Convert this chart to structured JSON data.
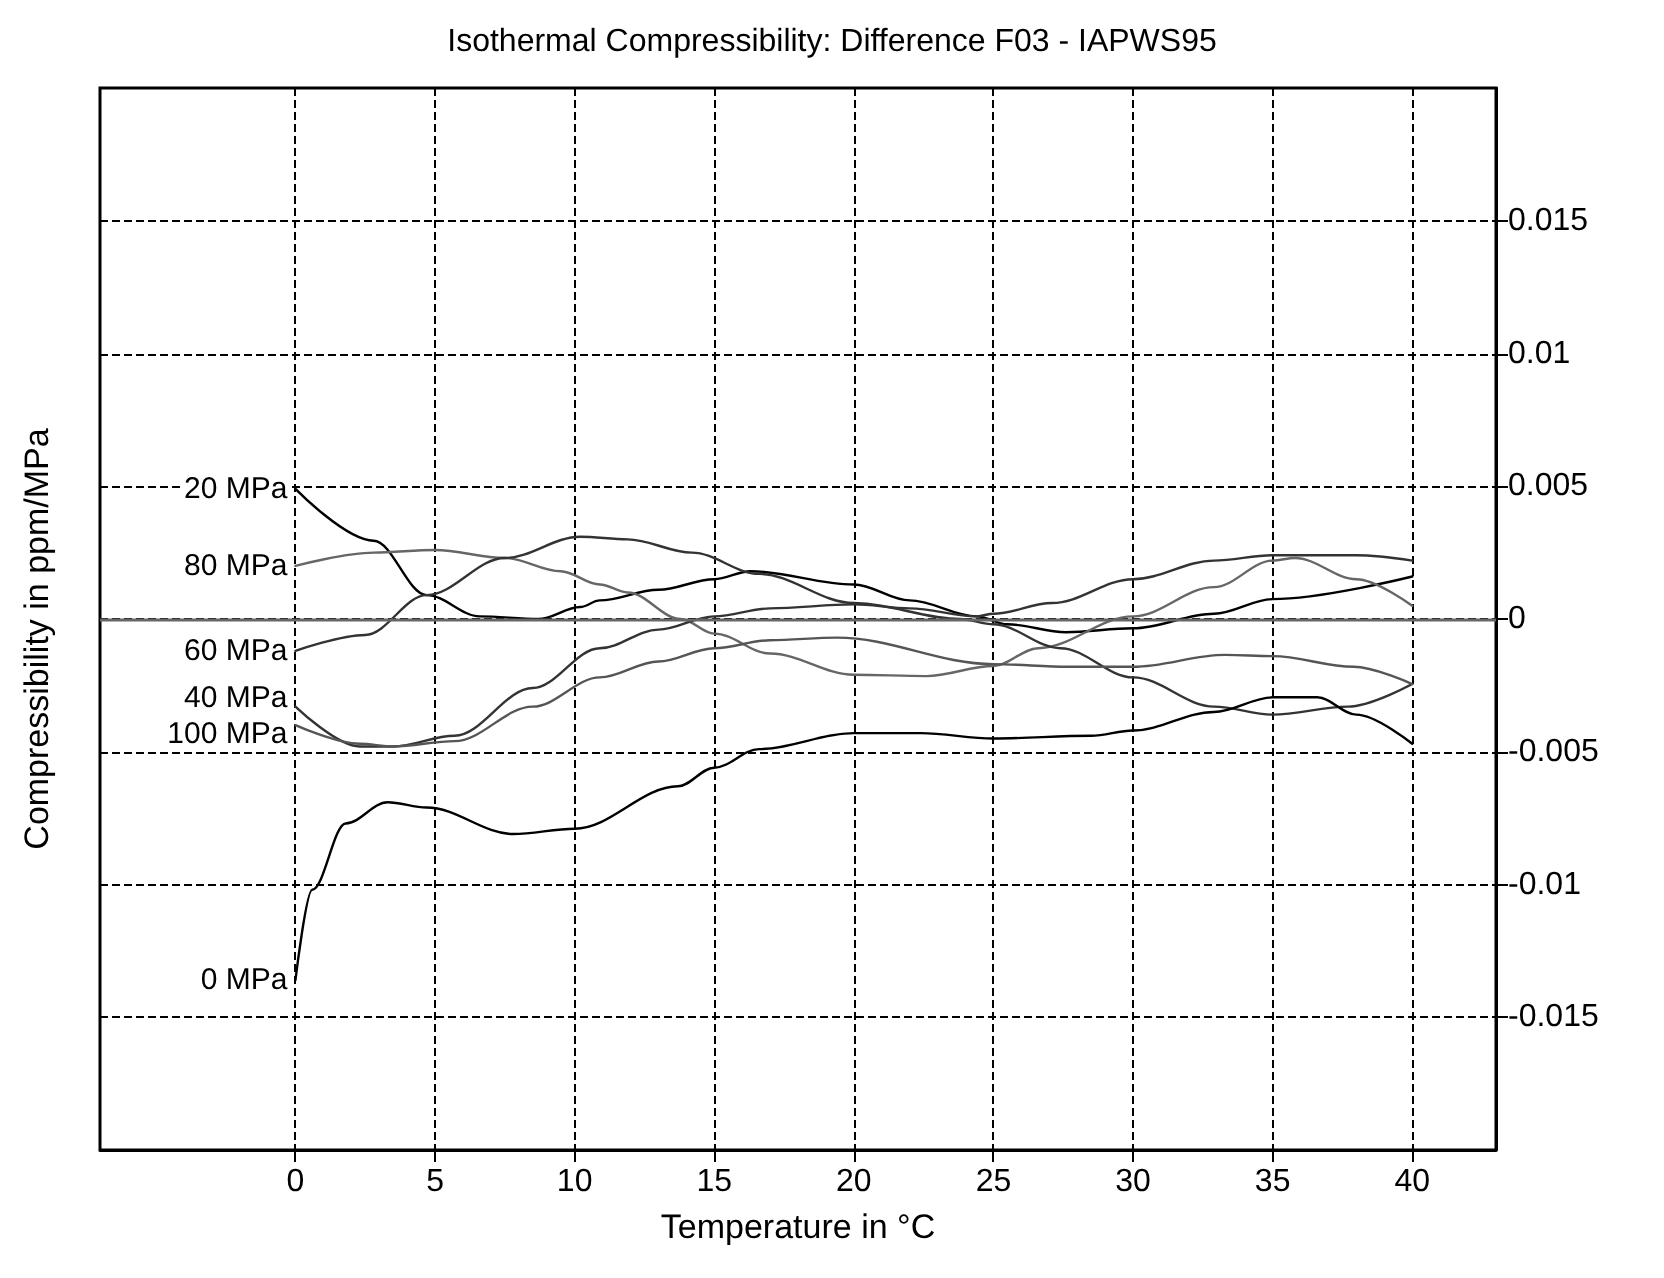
{
  "chart_data": {
    "type": "line",
    "title": "Isothermal Compressibility: Difference F03 - IAPWS95",
    "xlabel": "Temperature in °C",
    "ylabel": "Compressibility in ppm/MPa",
    "xlim": [
      -7,
      43
    ],
    "xticks": [
      0,
      5,
      10,
      15,
      20,
      25,
      30,
      35,
      40
    ],
    "ylim": [
      -0.02,
      0.02
    ],
    "yticks": [
      -0.015,
      -0.01,
      -0.005,
      0,
      0.005,
      0.01,
      0.015
    ],
    "grid": true,
    "marker": "none",
    "line_style": "solid",
    "ref_lines": [
      {
        "axis": "y",
        "value": 0,
        "color": "#666666",
        "line_style": "solid"
      }
    ],
    "series": [
      {
        "name": "20 MPa",
        "color": "#000000",
        "x": [
          0,
          2.8,
          4.7,
          6.6,
          8.7,
          10.2,
          10.9,
          13,
          15,
          16.3,
          20,
          22,
          24.4,
          25.5,
          27.6,
          30,
          32.9,
          35,
          40
        ],
        "values": [
          0.0049,
          0.00295,
          0.0009,
          0.0001,
          0,
          0.00045,
          0.0007,
          0.0011,
          0.0015,
          0.0018,
          0.0013,
          0.0007,
          0.0001,
          -0.0002,
          -0.0005,
          -0.00035,
          0.0002,
          0.00075,
          0.0016
        ]
      },
      {
        "name": "80 MPa",
        "color": "#666666",
        "x": [
          0,
          2.8,
          5,
          7.5,
          9.5,
          10.9,
          11.9,
          13.8,
          15,
          17,
          20,
          22.6,
          25,
          26.6,
          30,
          32.9,
          35,
          35.8,
          38,
          40
        ],
        "values": [
          0.002,
          0.0025,
          0.0026,
          0.0023,
          0.0018,
          0.0013,
          0.001,
          0,
          -0.00055,
          -0.0013,
          -0.0021,
          -0.00215,
          -0.00177,
          -0.0011,
          0.0001,
          0.0012,
          0.0022,
          0.0023,
          0.0015,
          0.0005
        ]
      },
      {
        "name": "60 MPa",
        "color": "#333333",
        "x": [
          0,
          2.5,
          4.7,
          7.5,
          10.2,
          11.9,
          14.2,
          16.6,
          20,
          23.8,
          25,
          27.4,
          30,
          32.9,
          35,
          37.7,
          40
        ],
        "values": [
          -0.0012,
          -0.0006,
          0.0009,
          0.0023,
          0.0031,
          0.003,
          0.0025,
          0.0017,
          0.0006,
          0,
          -0.0002,
          -0.0011,
          -0.0022,
          -0.0033,
          -0.0036,
          -0.0033,
          -0.00245
        ]
      },
      {
        "name": "40 MPa",
        "color": "#333333",
        "x": [
          0,
          2.3,
          3.5,
          5.7,
          8.5,
          10.9,
          13,
          15,
          17,
          20,
          22,
          24.4,
          25,
          27.1,
          30,
          32.9,
          35,
          38,
          40
        ],
        "values": [
          -0.0033,
          -0.0048,
          -0.0048,
          -0.0044,
          -0.0026,
          -0.0011,
          -0.0004,
          0.0001,
          0.0004,
          0.00055,
          0.0004,
          0.0001,
          0.0002,
          0.0006,
          0.0015,
          0.0022,
          0.0024,
          0.0024,
          0.0022
        ]
      },
      {
        "name": "100 MPa",
        "color": "#555555",
        "x": [
          0,
          2.3,
          3.5,
          5.7,
          8.5,
          10.9,
          13,
          15,
          17,
          19.4,
          25,
          27.7,
          30,
          33.3,
          35,
          37.9,
          40
        ],
        "values": [
          -0.004,
          -0.0047,
          -0.0048,
          -0.0046,
          -0.0033,
          -0.0022,
          -0.0016,
          -0.0011,
          -0.0008,
          -0.0007,
          -0.0017,
          -0.0018,
          -0.0018,
          -0.00135,
          -0.0014,
          -0.0018,
          -0.00245
        ]
      },
      {
        "name": "0 MPa",
        "color": "#000000",
        "x": [
          0,
          0.6,
          1.8,
          3.3,
          4.7,
          7.8,
          10,
          13.7,
          15,
          16.6,
          20,
          22.4,
          25,
          28.5,
          30,
          32.9,
          35,
          36.6,
          38,
          40
        ],
        "values": [
          -0.0136,
          -0.0102,
          -0.0077,
          -0.0069,
          -0.0071,
          -0.0081,
          -0.0079,
          -0.0063,
          -0.0056,
          -0.0049,
          -0.0043,
          -0.0043,
          -0.0045,
          -0.0044,
          -0.0042,
          -0.0035,
          -0.00295,
          -0.00295,
          -0.0036,
          -0.0047
        ]
      }
    ]
  }
}
